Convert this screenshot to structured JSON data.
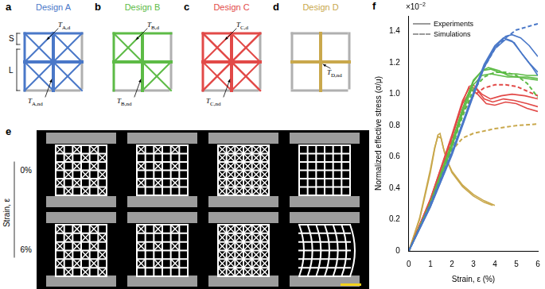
{
  "panels": {
    "designs": [
      {
        "label": "a",
        "title": "Design A",
        "color": "#4a78c8",
        "dimension_labels": [
          "S",
          "L"
        ],
        "thickness_labels": [
          {
            "symbol": "T",
            "subscript": "A,d"
          },
          {
            "symbol": "T",
            "subscript": "A,nd"
          }
        ]
      },
      {
        "label": "b",
        "title": "Design B",
        "color": "#5dbb46",
        "thickness_labels": [
          {
            "symbol": "T",
            "subscript": "B,d"
          },
          {
            "symbol": "T",
            "subscript": "B,nd"
          }
        ]
      },
      {
        "label": "c",
        "title": "Design C",
        "color": "#e24a48",
        "thickness_labels": [
          {
            "symbol": "T",
            "subscript": "C,d"
          },
          {
            "symbol": "T",
            "subscript": "C,nd"
          }
        ]
      },
      {
        "label": "d",
        "title": "Design D",
        "color": "#c9a84c",
        "thickness_labels": [
          {
            "symbol": "T",
            "subscript": "D,nd"
          }
        ]
      }
    ],
    "photos": {
      "label": "e",
      "axis_label": "Strain, ε",
      "row_labels": [
        "0%",
        "6%"
      ]
    },
    "chart_label": "f"
  },
  "chart_data": {
    "type": "line",
    "x_label": "Strain, ε (%)",
    "y_label": "Normalized effective stress (σ/μ)",
    "y_multiplier": {
      "base": "×10",
      "exponent": "−2"
    },
    "xlim": [
      0,
      6
    ],
    "xticks": [
      0,
      1,
      2,
      3,
      4,
      5,
      6
    ],
    "ylim": [
      0,
      1.5
    ],
    "yticks": [
      0,
      0.2,
      0.4,
      0.6,
      0.8,
      {
        "value": 1,
        "label": "1.0"
      },
      1.2,
      1.4
    ],
    "grid": false,
    "legend": "upper left",
    "legend_items": [
      {
        "name": "Experiments",
        "line_style": "solid",
        "color": "#9a9a9a"
      },
      {
        "name": "Simulations",
        "line_style": "dashed",
        "color": "#9a9a9a"
      }
    ],
    "series": [
      {
        "color": "#4a78c8",
        "line_style": "solid",
        "points": [
          [
            0,
            0
          ],
          [
            1,
            0.28
          ],
          [
            2,
            0.62
          ],
          [
            3,
            1.0
          ],
          [
            3.5,
            1.18
          ],
          [
            4,
            1.3
          ],
          [
            4.5,
            1.37
          ],
          [
            4.8,
            1.38
          ],
          [
            5.2,
            1.36
          ],
          [
            5.6,
            1.31
          ],
          [
            6,
            1.24
          ]
        ]
      },
      {
        "color": "#4a78c8",
        "line_style": "solid",
        "points": [
          [
            0,
            0
          ],
          [
            1,
            0.29
          ],
          [
            2,
            0.63
          ],
          [
            3,
            1.01
          ],
          [
            3.5,
            1.19
          ],
          [
            4,
            1.31
          ],
          [
            4.4,
            1.36
          ],
          [
            4.8,
            1.34
          ],
          [
            5.2,
            1.27
          ],
          [
            5.6,
            1.2
          ],
          [
            6,
            1.14
          ]
        ]
      },
      {
        "color": "#4a78c8",
        "line_style": "solid",
        "points": [
          [
            0,
            0
          ],
          [
            1,
            0.28
          ],
          [
            2,
            0.61
          ],
          [
            3,
            0.99
          ],
          [
            3.5,
            1.17
          ],
          [
            4,
            1.29
          ],
          [
            4.5,
            1.35
          ],
          [
            4.9,
            1.33
          ],
          [
            5.3,
            1.25
          ],
          [
            5.7,
            1.18
          ],
          [
            6,
            1.12
          ]
        ]
      },
      {
        "color": "#4a78c8",
        "line_style": "dashed",
        "points": [
          [
            0,
            0
          ],
          [
            1,
            0.3
          ],
          [
            2,
            0.63
          ],
          [
            3,
            1.0
          ],
          [
            3.5,
            1.17
          ],
          [
            4,
            1.29
          ],
          [
            4.5,
            1.36
          ],
          [
            5,
            1.41
          ],
          [
            5.5,
            1.43
          ],
          [
            6,
            1.45
          ]
        ]
      },
      {
        "color": "#5dbb46",
        "line_style": "solid",
        "points": [
          [
            0,
            0
          ],
          [
            1,
            0.3
          ],
          [
            2,
            0.68
          ],
          [
            2.5,
            0.9
          ],
          [
            3,
            1.08
          ],
          [
            3.4,
            1.15
          ],
          [
            3.8,
            1.16
          ],
          [
            4.2,
            1.14
          ],
          [
            4.6,
            1.13
          ],
          [
            5,
            1.13
          ],
          [
            5.5,
            1.12
          ],
          [
            6,
            1.12
          ]
        ]
      },
      {
        "color": "#5dbb46",
        "line_style": "solid",
        "points": [
          [
            0,
            0
          ],
          [
            1,
            0.31
          ],
          [
            2,
            0.69
          ],
          [
            2.5,
            0.91
          ],
          [
            3,
            1.09
          ],
          [
            3.4,
            1.15
          ],
          [
            3.7,
            1.17
          ],
          [
            4.2,
            1.15
          ],
          [
            4.6,
            1.12
          ],
          [
            5,
            1.11
          ],
          [
            5.5,
            1.11
          ],
          [
            6,
            1.1
          ]
        ]
      },
      {
        "color": "#5dbb46",
        "line_style": "solid",
        "points": [
          [
            0,
            0
          ],
          [
            1,
            0.29
          ],
          [
            2,
            0.66
          ],
          [
            2.5,
            0.88
          ],
          [
            3,
            1.06
          ],
          [
            3.4,
            1.12
          ],
          [
            3.8,
            1.13
          ],
          [
            4.2,
            1.12
          ],
          [
            4.6,
            1.11
          ],
          [
            5,
            1.11
          ],
          [
            5.5,
            1.1
          ],
          [
            6,
            1.09
          ]
        ]
      },
      {
        "color": "#5dbb46",
        "line_style": "dashed",
        "points": [
          [
            0,
            0
          ],
          [
            1,
            0.3
          ],
          [
            2,
            0.66
          ],
          [
            2.5,
            0.86
          ],
          [
            3,
            1.03
          ],
          [
            3.5,
            1.11
          ],
          [
            4,
            1.14
          ],
          [
            4.5,
            1.14
          ],
          [
            5,
            1.12
          ],
          [
            5.5,
            1.07
          ],
          [
            6,
            0.98
          ]
        ]
      },
      {
        "color": "#e24a48",
        "line_style": "solid",
        "points": [
          [
            0,
            0
          ],
          [
            1,
            0.33
          ],
          [
            2,
            0.73
          ],
          [
            2.5,
            0.95
          ],
          [
            2.8,
            1.05
          ],
          [
            3,
            1.06
          ],
          [
            3.4,
            1.0
          ],
          [
            3.8,
            0.97
          ],
          [
            4.3,
            0.99
          ],
          [
            4.8,
            1.0
          ],
          [
            5.4,
            0.99
          ],
          [
            6,
            0.97
          ]
        ]
      },
      {
        "color": "#e24a48",
        "line_style": "solid",
        "points": [
          [
            0,
            0
          ],
          [
            1,
            0.33
          ],
          [
            2,
            0.74
          ],
          [
            2.5,
            0.96
          ],
          [
            2.8,
            1.04
          ],
          [
            3.1,
            1.04
          ],
          [
            3.5,
            0.97
          ],
          [
            3.9,
            0.95
          ],
          [
            4.4,
            0.97
          ],
          [
            4.9,
            0.96
          ],
          [
            5.5,
            0.94
          ],
          [
            6,
            0.92
          ]
        ]
      },
      {
        "color": "#e24a48",
        "line_style": "solid",
        "points": [
          [
            0,
            0
          ],
          [
            1,
            0.32
          ],
          [
            2,
            0.72
          ],
          [
            2.5,
            0.94
          ],
          [
            2.9,
            1.03
          ],
          [
            3.2,
            1.0
          ],
          [
            3.6,
            0.94
          ],
          [
            4,
            0.93
          ],
          [
            4.5,
            0.95
          ],
          [
            5,
            0.94
          ],
          [
            5.5,
            0.91
          ],
          [
            6,
            0.89
          ]
        ]
      },
      {
        "color": "#e24a48",
        "line_style": "dashed",
        "points": [
          [
            0,
            0
          ],
          [
            1,
            0.32
          ],
          [
            2,
            0.7
          ],
          [
            2.5,
            0.88
          ],
          [
            3,
            0.99
          ],
          [
            3.5,
            1.04
          ],
          [
            4,
            1.06
          ],
          [
            4.5,
            1.06
          ],
          [
            5,
            1.05
          ],
          [
            5.5,
            1.02
          ],
          [
            6,
            0.99
          ]
        ]
      },
      {
        "color": "#c9a84c",
        "line_style": "solid",
        "points": [
          [
            0,
            0
          ],
          [
            0.5,
            0.2
          ],
          [
            1,
            0.5
          ],
          [
            1.2,
            0.65
          ],
          [
            1.35,
            0.74
          ],
          [
            1.45,
            0.75
          ],
          [
            1.6,
            0.66
          ],
          [
            1.8,
            0.57
          ],
          [
            2,
            0.51
          ],
          [
            2.5,
            0.42
          ],
          [
            3,
            0.36
          ],
          [
            3.5,
            0.32
          ],
          [
            4,
            0.29
          ]
        ]
      },
      {
        "color": "#c9a84c",
        "line_style": "solid",
        "points": [
          [
            0,
            0
          ],
          [
            0.5,
            0.21
          ],
          [
            1,
            0.52
          ],
          [
            1.2,
            0.66
          ],
          [
            1.35,
            0.73
          ],
          [
            1.5,
            0.72
          ],
          [
            1.65,
            0.63
          ],
          [
            1.85,
            0.55
          ],
          [
            2,
            0.5
          ],
          [
            2.5,
            0.41
          ],
          [
            3,
            0.35
          ],
          [
            3.5,
            0.31
          ],
          [
            3.9,
            0.29
          ]
        ]
      },
      {
        "color": "#c9a84c",
        "line_style": "dashed",
        "points": [
          [
            0,
            0
          ],
          [
            1,
            0.31
          ],
          [
            2,
            0.64
          ],
          [
            2.5,
            0.72
          ],
          [
            3,
            0.75
          ],
          [
            4,
            0.78
          ],
          [
            5,
            0.8
          ],
          [
            6,
            0.81
          ]
        ]
      }
    ]
  }
}
